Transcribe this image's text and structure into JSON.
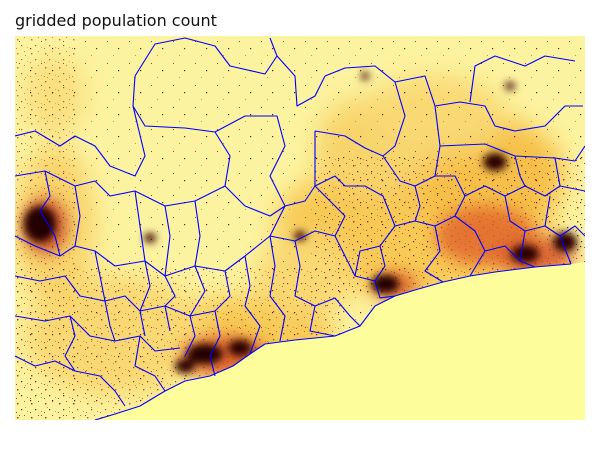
{
  "title": "gridded population count",
  "colors": {
    "background": "#ffffff",
    "low_population": "#fdfd9c",
    "medium_population": "#f7b52c",
    "high_population": "#b0261e",
    "very_high_population": "#200000",
    "boundaries": "#0000ff"
  }
}
